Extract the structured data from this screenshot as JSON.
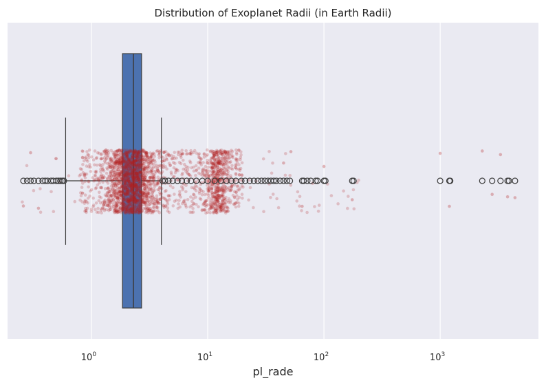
{
  "chart_data": {
    "type": "box+strip",
    "title": "Distribution of Exoplanet Radii (in Earth Radii)",
    "xlabel": "pl_rade",
    "ylabel": "",
    "x_scale": "log",
    "xlim": [
      0.19,
      7000
    ],
    "x_ticks": [
      {
        "value": 1,
        "base": "10",
        "exp": "0"
      },
      {
        "value": 10,
        "base": "10",
        "exp": "1"
      },
      {
        "value": 100,
        "base": "10",
        "exp": "2"
      },
      {
        "value": 1000,
        "base": "10",
        "exp": "3"
      }
    ],
    "grid": true,
    "box": {
      "whisker_low": 0.6,
      "q1": 1.85,
      "median": 2.3,
      "q3": 2.7,
      "whisker_high": 4.0
    },
    "outliers_high": [
      4.1,
      4.3,
      4.6,
      5.0,
      5.5,
      6.0,
      6.6,
      7.2,
      8.0,
      9.0,
      10.0,
      11.5,
      13.0,
      14.5,
      16.0,
      17.5,
      19.5,
      21.0,
      23.0,
      25.0,
      27.0,
      29.0,
      31.0,
      33.0,
      35.0,
      37.0,
      39.0,
      42.0,
      45.0,
      48.0,
      51.0,
      65.0,
      67.0,
      72.0,
      77.0,
      85.0,
      88.0,
      100.0,
      103.0,
      175.0,
      180.0,
      1000.0,
      1200.0,
      1220.0,
      2300.0,
      2800.0,
      3300.0,
      3800.0,
      3900.0,
      4400.0
    ],
    "outliers_low": [
      0.26,
      0.28,
      0.3,
      0.32,
      0.35,
      0.38,
      0.4,
      0.42,
      0.45,
      0.47,
      0.5,
      0.52,
      0.54,
      0.56,
      0.58
    ],
    "colors": {
      "background": "#EAEAF2",
      "grid": "#FFFFFF",
      "box_fill": "#4C72B0",
      "box_edge": "#3D3D3D",
      "strip": "#B22222",
      "text": "#262626"
    }
  }
}
